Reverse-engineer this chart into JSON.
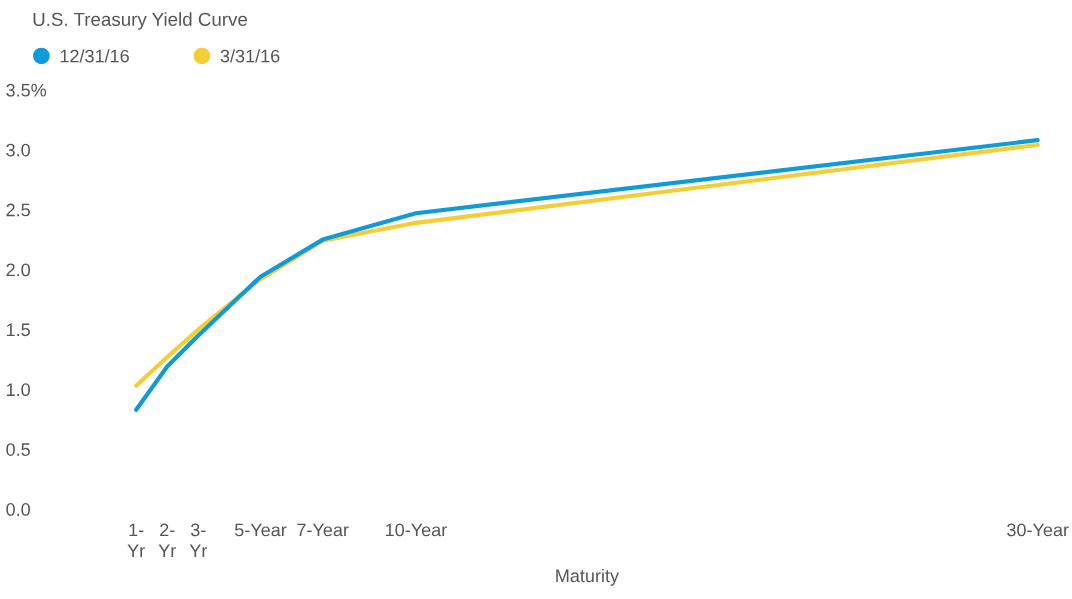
{
  "chart_data": {
    "type": "line",
    "title": "U.S. Treasury Yield Curve",
    "xlabel": "Maturity",
    "x": [
      1,
      2,
      3,
      5,
      7,
      10,
      30
    ],
    "series": [
      {
        "name": "12/31/16",
        "color": "#0f9ad8",
        "values": [
          0.83,
          1.19,
          1.45,
          1.94,
          2.25,
          2.47,
          3.08
        ]
      },
      {
        "name": "3/31/16",
        "color": "#f5cd34",
        "values": [
          1.03,
          1.27,
          1.5,
          1.92,
          2.24,
          2.39,
          3.04
        ]
      }
    ],
    "xlim": [
      1,
      30
    ],
    "xticks": [
      {
        "value": 1,
        "label": "1-\nYr"
      },
      {
        "value": 2,
        "label": "2-\nYr"
      },
      {
        "value": 3,
        "label": "3-\nYr"
      },
      {
        "value": 5,
        "label": "5-Year"
      },
      {
        "value": 7,
        "label": "7-Year"
      },
      {
        "value": 10,
        "label": "10-Year"
      },
      {
        "value": 30,
        "label": "30-Year"
      }
    ],
    "ylim": [
      0,
      3.5
    ],
    "yticks": [
      {
        "value": 0,
        "label": "0.0"
      },
      {
        "value": 0.5,
        "label": "0.5"
      },
      {
        "value": 1,
        "label": "1.0"
      },
      {
        "value": 1.5,
        "label": "1.5"
      },
      {
        "value": 2,
        "label": "2.0"
      },
      {
        "value": 2.5,
        "label": "2.5"
      },
      {
        "value": 3,
        "label": "3.0"
      },
      {
        "value": 3.5,
        "label": "3.5%"
      }
    ],
    "grid": false,
    "legend": "top left",
    "marker": "none",
    "line_style": "solid"
  }
}
